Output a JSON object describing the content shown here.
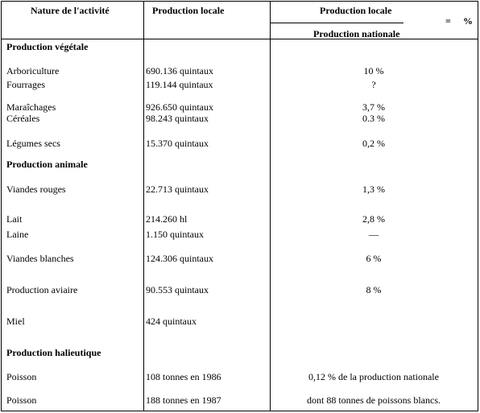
{
  "header": {
    "col1": "Nature de l'activité",
    "col2": "Production locale",
    "col3_numerator": "Production locale",
    "col3_denominator": "Production nationale",
    "col3_equals": "=",
    "col3_percent": "%"
  },
  "sections": [
    {
      "title": "Production végétale",
      "rows": [
        {
          "activity": "Arboriculture",
          "production": "690.136 quintaux",
          "ratio": "10 %"
        },
        {
          "activity": "Fourrages",
          "production": "119.144 quintaux",
          "ratio": "?"
        },
        {
          "activity": "Maraîchages",
          "production": "926.650 quintaux",
          "ratio": "3,7 %"
        },
        {
          "activity": "Céréales",
          "production": "98.243 quintaux",
          "ratio": "0.3 %"
        },
        {
          "activity": "Légumes secs",
          "production": "15.370 quintaux",
          "ratio": "0,2 %"
        }
      ]
    },
    {
      "title": "Production animale",
      "rows": [
        {
          "activity": "Viandes rouges",
          "production": "22.713 quintaux",
          "ratio": "1,3 %"
        },
        {
          "activity": "Lait",
          "production": "214.260 hl",
          "ratio": "2,8 %"
        },
        {
          "activity": "Laine",
          "production": "1.150 quintaux",
          "ratio": "—"
        },
        {
          "activity": "Viandes blanches",
          "production": "124.306 quintaux",
          "ratio": "6 %"
        },
        {
          "activity": "Production aviaire",
          "production": "90.553 quintaux",
          "ratio": "8 %"
        },
        {
          "activity": "Miel",
          "production": "424 quintaux",
          "ratio": ""
        }
      ]
    },
    {
      "title": "Production halieutique",
      "rows": [
        {
          "activity": "Poisson",
          "production": "108 tonnes en 1986",
          "ratio": "0,12 % de la production nationale"
        },
        {
          "activity": "Poisson",
          "production": "188 tonnes en 1987",
          "ratio": "dont 88 tonnes de poissons blancs."
        }
      ]
    }
  ]
}
